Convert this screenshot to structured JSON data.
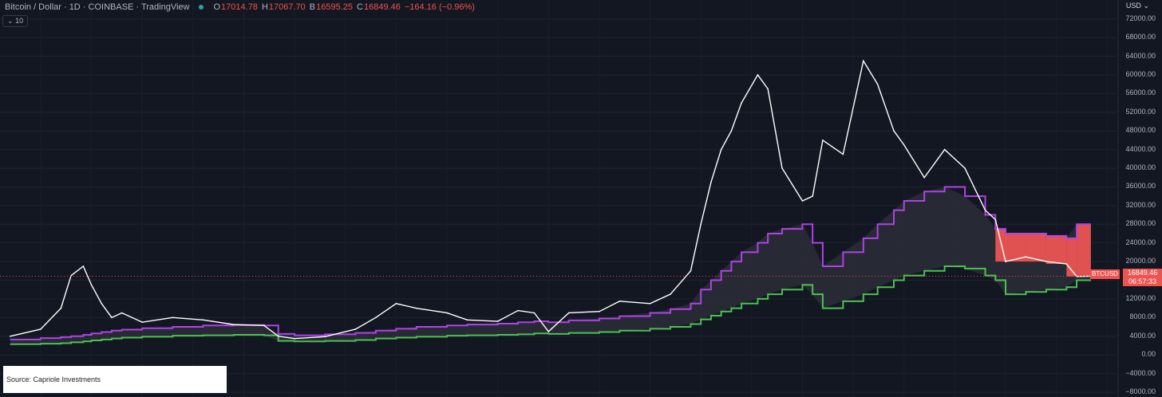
{
  "header": {
    "title": "Bitcoin / Dollar · 1D · COINBASE · TradingView",
    "o_label": "O",
    "o_value": "17014.78",
    "h_label": "H",
    "h_value": "17067.70",
    "l_label": "B",
    "l_value": "16595.25",
    "c_label": "C",
    "c_value": "16849.46",
    "change": "−164.16 (−0.96%)",
    "interval_label": "10"
  },
  "price_scale": {
    "currency": "USD",
    "current_symbol": "BTCUSD",
    "current_price": "16849.46",
    "countdown": "06:57:33"
  },
  "source_text": "Source: Capriole Investments",
  "colors": {
    "background": "#131722",
    "price_line": "#ffffff",
    "upper_band": "#b042e6",
    "lower_band": "#4cc24f",
    "above_band_fill": "#e05252",
    "band_fill": "#2b2d38"
  },
  "chart_data": {
    "type": "line",
    "y_ticks": [
      "72000.00",
      "68000.00",
      "64000.00",
      "60000.00",
      "56000.00",
      "52000.00",
      "48000.00",
      "44000.00",
      "40000.00",
      "36000.00",
      "32000.00",
      "28000.00",
      "24000.00",
      "20000.00",
      "16000.00",
      "12000.00",
      "8000.00",
      "4000.00",
      "0.00",
      "−4000.00",
      "−8000.00"
    ],
    "ylim": [
      -8000,
      74000
    ],
    "grid": true,
    "x": [
      2017.6,
      2017.75,
      2017.85,
      2017.9,
      2017.96,
      2018.0,
      2018.05,
      2018.1,
      2018.15,
      2018.25,
      2018.4,
      2018.55,
      2018.7,
      2018.85,
      2018.92,
      2019.0,
      2019.15,
      2019.3,
      2019.4,
      2019.5,
      2019.6,
      2019.75,
      2019.85,
      2020.0,
      2020.1,
      2020.18,
      2020.25,
      2020.35,
      2020.5,
      2020.6,
      2020.75,
      2020.85,
      2020.95,
      2021.0,
      2021.05,
      2021.1,
      2021.15,
      2021.2,
      2021.28,
      2021.33,
      2021.4,
      2021.5,
      2021.55,
      2021.6,
      2021.7,
      2021.8,
      2021.87,
      2021.95,
      2022.0,
      2022.1,
      2022.2,
      2022.3,
      2022.4,
      2022.45,
      2022.5,
      2022.6,
      2022.7,
      2022.8,
      2022.85,
      2022.92
    ],
    "series": [
      {
        "values": [
          4000,
          5500,
          10000,
          17000,
          19000,
          15000,
          11000,
          8000,
          9000,
          7000,
          8000,
          7500,
          6500,
          6300,
          4000,
          3500,
          3900,
          5500,
          8000,
          11000,
          10000,
          9000,
          7500,
          7200,
          9500,
          9000,
          5000,
          9000,
          9300,
          11500,
          11000,
          13000,
          18000,
          28000,
          37000,
          44000,
          48000,
          54000,
          60000,
          57000,
          40000,
          33000,
          34000,
          46000,
          43000,
          63000,
          58000,
          48000,
          45000,
          38000,
          44000,
          40000,
          31000,
          29000,
          20000,
          21000,
          20000,
          19500,
          16800,
          16849
        ]
      },
      {
        "values": [
          3300,
          3600,
          3800,
          4000,
          4300,
          4600,
          4900,
          5200,
          5400,
          5700,
          6000,
          6300,
          6400,
          6300,
          4500,
          4200,
          4400,
          4700,
          5200,
          5600,
          6000,
          6300,
          6500,
          6700,
          7000,
          7200,
          7000,
          7400,
          7800,
          8300,
          9000,
          9800,
          11000,
          14000,
          16000,
          18000,
          20000,
          22000,
          24000,
          26000,
          27000,
          28000,
          24000,
          19000,
          22000,
          25000,
          28000,
          31000,
          33000,
          35000,
          36000,
          34000,
          30000,
          27000,
          26000,
          26000,
          25500,
          25000,
          28000,
          28000
        ]
      },
      {
        "values": [
          2300,
          2400,
          2500,
          2700,
          2900,
          3100,
          3300,
          3500,
          3700,
          3900,
          4100,
          4200,
          4300,
          4200,
          3000,
          2900,
          3000,
          3200,
          3500,
          3700,
          3900,
          4100,
          4200,
          4300,
          4400,
          4600,
          4500,
          4700,
          4900,
          5200,
          5600,
          6000,
          6600,
          7600,
          8400,
          9300,
          10000,
          11000,
          12000,
          13000,
          14000,
          15000,
          13000,
          10000,
          11500,
          13000,
          14500,
          16000,
          17000,
          18000,
          19000,
          18500,
          17000,
          16000,
          13000,
          13500,
          14000,
          14500,
          16000,
          16000
        ]
      }
    ]
  }
}
